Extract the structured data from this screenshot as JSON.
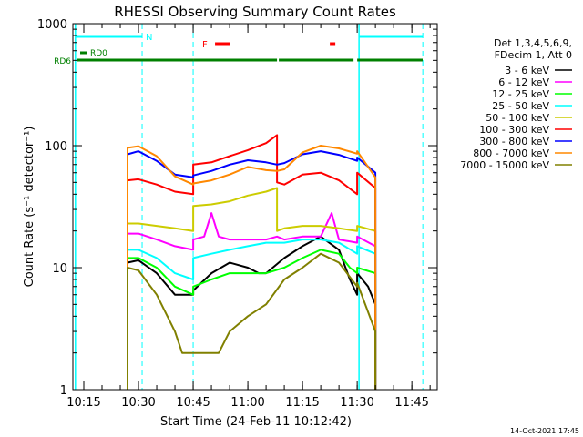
{
  "chart_data": {
    "type": "line",
    "title": "RHESSI Observing Summary Count Rates",
    "xlabel": "Start Time (24-Feb-11 10:12:42)",
    "ylabel": "Count Rate (s⁻¹ detector⁻¹)",
    "y_scale": "log",
    "ylim": [
      1,
      1000
    ],
    "xlim_minutes": [
      10.2,
      11.866
    ],
    "x_ticks": [
      "10:15",
      "10:30",
      "10:45",
      "11:00",
      "11:15",
      "11:30",
      "11:45"
    ],
    "y_ticks": [
      "1",
      "10",
      "100",
      "1000"
    ],
    "legend_header": [
      "Det 1,3,4,5,6,9,",
      "FDecim 1, Att 0"
    ],
    "legend_placement": "right",
    "series": [
      {
        "name": "3 - 6 keV",
        "color": "#000000",
        "points": [
          [
            "10:27",
            1
          ],
          [
            "10:27",
            11
          ],
          [
            "10:30",
            11.5
          ],
          [
            "10:35",
            9
          ],
          [
            "10:40",
            6
          ],
          [
            "10:45",
            6
          ],
          [
            "10:45",
            6.5
          ],
          [
            "10:50",
            9
          ],
          [
            "10:55",
            11
          ],
          [
            "11:00",
            10
          ],
          [
            "11:03",
            9
          ],
          [
            "11:05",
            9
          ],
          [
            "11:10",
            12
          ],
          [
            "11:15",
            15
          ],
          [
            "11:20",
            18
          ],
          [
            "11:25",
            14
          ],
          [
            "11:28",
            8
          ],
          [
            "11:30",
            6
          ],
          [
            "11:30",
            9
          ],
          [
            "11:33",
            7
          ],
          [
            "11:35",
            5
          ],
          [
            "11:35",
            1
          ]
        ]
      },
      {
        "name": "6 - 12 keV",
        "color": "#ff00ff",
        "points": [
          [
            "10:27",
            2
          ],
          [
            "10:27",
            19
          ],
          [
            "10:30",
            19
          ],
          [
            "10:35",
            17
          ],
          [
            "10:40",
            15
          ],
          [
            "10:45",
            14
          ],
          [
            "10:45",
            17
          ],
          [
            "10:48",
            18
          ],
          [
            "10:50",
            28
          ],
          [
            "10:52",
            18
          ],
          [
            "10:55",
            17
          ],
          [
            "11:00",
            17
          ],
          [
            "11:05",
            17
          ],
          [
            "11:08",
            18
          ],
          [
            "11:10",
            17
          ],
          [
            "11:15",
            18
          ],
          [
            "11:20",
            18
          ],
          [
            "11:23",
            28
          ],
          [
            "11:25",
            17
          ],
          [
            "11:30",
            16
          ],
          [
            "11:30",
            18
          ],
          [
            "11:35",
            15
          ],
          [
            "11:35",
            1
          ]
        ]
      },
      {
        "name": "12 - 25 keV",
        "color": "#00ff00",
        "points": [
          [
            "10:27",
            1
          ],
          [
            "10:27",
            12
          ],
          [
            "10:30",
            12
          ],
          [
            "10:35",
            10
          ],
          [
            "10:40",
            7
          ],
          [
            "10:45",
            6
          ],
          [
            "10:45",
            7
          ],
          [
            "10:50",
            8
          ],
          [
            "10:55",
            9
          ],
          [
            "11:00",
            9
          ],
          [
            "11:05",
            9
          ],
          [
            "11:10",
            10
          ],
          [
            "11:15",
            12
          ],
          [
            "11:20",
            14
          ],
          [
            "11:25",
            13
          ],
          [
            "11:28",
            10
          ],
          [
            "11:30",
            9
          ],
          [
            "11:30",
            10
          ],
          [
            "11:35",
            9
          ],
          [
            "11:35",
            1
          ]
        ]
      },
      {
        "name": "25 - 50 keV",
        "color": "#00ffff",
        "points": [
          [
            "10:27",
            1
          ],
          [
            "10:27",
            14
          ],
          [
            "10:30",
            14
          ],
          [
            "10:35",
            12
          ],
          [
            "10:40",
            9
          ],
          [
            "10:45",
            8
          ],
          [
            "10:45",
            12
          ],
          [
            "10:50",
            13
          ],
          [
            "10:55",
            14
          ],
          [
            "11:00",
            15
          ],
          [
            "11:05",
            16
          ],
          [
            "11:10",
            16
          ],
          [
            "11:15",
            17
          ],
          [
            "11:20",
            17
          ],
          [
            "11:25",
            16
          ],
          [
            "11:30",
            13
          ],
          [
            "11:30",
            15
          ],
          [
            "11:35",
            13
          ],
          [
            "11:35",
            1
          ]
        ]
      },
      {
        "name": "50 - 100 keV",
        "color": "#cccc00",
        "points": [
          [
            "10:27",
            1
          ],
          [
            "10:27",
            23
          ],
          [
            "10:30",
            23
          ],
          [
            "10:35",
            22
          ],
          [
            "10:40",
            21
          ],
          [
            "10:45",
            20
          ],
          [
            "10:45",
            32
          ],
          [
            "10:50",
            33
          ],
          [
            "10:55",
            35
          ],
          [
            "11:00",
            39
          ],
          [
            "11:05",
            42
          ],
          [
            "11:08",
            45
          ],
          [
            "11:08",
            20
          ],
          [
            "11:10",
            21
          ],
          [
            "11:15",
            22
          ],
          [
            "11:20",
            22
          ],
          [
            "11:25",
            21
          ],
          [
            "11:30",
            20
          ],
          [
            "11:30",
            22
          ],
          [
            "11:35",
            20
          ],
          [
            "11:35",
            1
          ]
        ]
      },
      {
        "name": "100 - 300 keV",
        "color": "#ff0000",
        "points": [
          [
            "10:27",
            3
          ],
          [
            "10:27",
            52
          ],
          [
            "10:30",
            53
          ],
          [
            "10:35",
            48
          ],
          [
            "10:40",
            42
          ],
          [
            "10:45",
            40
          ],
          [
            "10:45",
            70
          ],
          [
            "10:50",
            73
          ],
          [
            "10:55",
            82
          ],
          [
            "11:00",
            92
          ],
          [
            "11:05",
            105
          ],
          [
            "11:08",
            122
          ],
          [
            "11:08",
            50
          ],
          [
            "11:10",
            48
          ],
          [
            "11:15",
            58
          ],
          [
            "11:20",
            60
          ],
          [
            "11:25",
            52
          ],
          [
            "11:30",
            40
          ],
          [
            "11:30",
            60
          ],
          [
            "11:35",
            45
          ],
          [
            "11:35",
            1
          ]
        ]
      },
      {
        "name": "300 - 800 keV",
        "color": "#0000ff",
        "points": [
          [
            "10:27",
            1
          ],
          [
            "10:27",
            85
          ],
          [
            "10:30",
            90
          ],
          [
            "10:35",
            75
          ],
          [
            "10:40",
            58
          ],
          [
            "10:45",
            55
          ],
          [
            "10:45",
            57
          ],
          [
            "10:50",
            62
          ],
          [
            "10:55",
            70
          ],
          [
            "11:00",
            76
          ],
          [
            "11:05",
            73
          ],
          [
            "11:08",
            70
          ],
          [
            "11:10",
            72
          ],
          [
            "11:15",
            85
          ],
          [
            "11:20",
            90
          ],
          [
            "11:25",
            84
          ],
          [
            "11:30",
            75
          ],
          [
            "11:30",
            80
          ],
          [
            "11:35",
            60
          ],
          [
            "11:35",
            1
          ]
        ]
      },
      {
        "name": "800 - 7000 keV",
        "color": "#ff8800",
        "points": [
          [
            "10:27",
            1
          ],
          [
            "10:27",
            96
          ],
          [
            "10:30",
            99
          ],
          [
            "10:35",
            82
          ],
          [
            "10:40",
            56
          ],
          [
            "10:45",
            48
          ],
          [
            "10:45",
            49
          ],
          [
            "10:50",
            52
          ],
          [
            "10:55",
            58
          ],
          [
            "11:00",
            67
          ],
          [
            "11:05",
            63
          ],
          [
            "11:08",
            62
          ],
          [
            "11:10",
            64
          ],
          [
            "11:15",
            88
          ],
          [
            "11:20",
            100
          ],
          [
            "11:25",
            95
          ],
          [
            "11:30",
            86
          ],
          [
            "11:30",
            90
          ],
          [
            "11:35",
            55
          ],
          [
            "11:35",
            1
          ]
        ]
      },
      {
        "name": "7000 - 15000 keV",
        "color": "#808000",
        "points": [
          [
            "10:27",
            1
          ],
          [
            "10:27",
            10
          ],
          [
            "10:30",
            9.5
          ],
          [
            "10:35",
            6
          ],
          [
            "10:40",
            3
          ],
          [
            "10:42",
            2
          ],
          [
            "10:52",
            2
          ],
          [
            "10:55",
            3
          ],
          [
            "11:00",
            4
          ],
          [
            "11:05",
            5
          ],
          [
            "11:10",
            8
          ],
          [
            "11:15",
            10
          ],
          [
            "11:20",
            13
          ],
          [
            "11:25",
            11
          ],
          [
            "11:30",
            7
          ],
          [
            "11:30",
            7.5
          ],
          [
            "11:35",
            3
          ],
          [
            "11:35",
            1
          ]
        ]
      }
    ],
    "annotations": {
      "night_label": "N",
      "flare_label": "F",
      "rd0_label": "RD0",
      "rd6_label": "RD6",
      "cyan_night": [
        [
          "10:12.7",
          "10:31"
        ],
        [
          "11:30.5",
          "11:48"
        ]
      ],
      "cyan_dashed": [
        "10:31",
        "10:45",
        "11:30.5",
        "11:48"
      ],
      "flare_bars": [
        [
          "10:51",
          "10:55"
        ],
        [
          "11:22.5",
          "11:24"
        ]
      ],
      "rd0_bar": [
        [
          "10:14",
          "10:16"
        ]
      ],
      "rd6_bars": [
        [
          "10:13",
          "10:45"
        ],
        [
          "10:45",
          "11:08"
        ],
        [
          "11:08.5",
          "11:29"
        ],
        [
          "11:30",
          "11:51"
        ]
      ]
    },
    "grid": false
  },
  "footer_timestamp": "14-Oct-2021 17:45"
}
